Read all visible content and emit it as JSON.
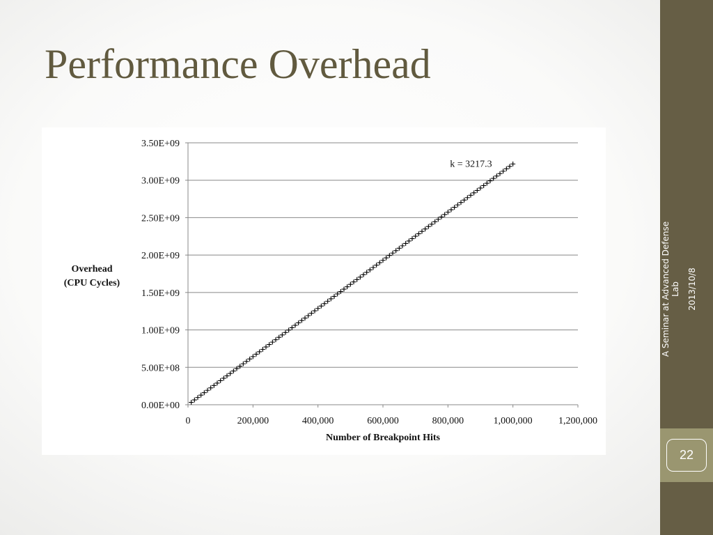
{
  "slide": {
    "title": "Performance Overhead",
    "date": "2013/10/8",
    "footer_line1": "A Seminar at Advanced Defense",
    "footer_line2": "Lab",
    "page_number": "22"
  },
  "colors": {
    "title": "#615a3f",
    "sidebar": "#665e45",
    "page_box": "#9a9670",
    "data_line": "#000000",
    "grid": "#888888"
  },
  "chart_data": {
    "type": "scatter",
    "title": "",
    "xlabel": "Number of Breakpoint Hits",
    "ylabel_lines": [
      "Overhead",
      "(CPU Cycles)"
    ],
    "xlim": [
      0,
      1200000
    ],
    "ylim": [
      0,
      3500000000
    ],
    "x_ticks": [
      0,
      200000,
      400000,
      600000,
      800000,
      1000000,
      1200000
    ],
    "x_tick_labels": [
      "0",
      "200,000",
      "400,000",
      "600,000",
      "800,000",
      "1,000,000",
      "1,200,000"
    ],
    "y_ticks": [
      0,
      500000000,
      1000000000,
      1500000000,
      2000000000,
      2500000000,
      3000000000,
      3500000000
    ],
    "y_tick_labels": [
      "0.00E+00",
      "5.00E+08",
      "1.00E+09",
      "1.50E+09",
      "2.00E+09",
      "2.50E+09",
      "3.00E+09",
      "3.50E+09"
    ],
    "grid": "horizontal",
    "marker": "+",
    "annotation": "k = 3217.3",
    "series": [
      {
        "x_start": 10000,
        "x_end": 1000000,
        "x_step": 10000,
        "slope": 3217.3,
        "intercept": 0
      }
    ]
  }
}
